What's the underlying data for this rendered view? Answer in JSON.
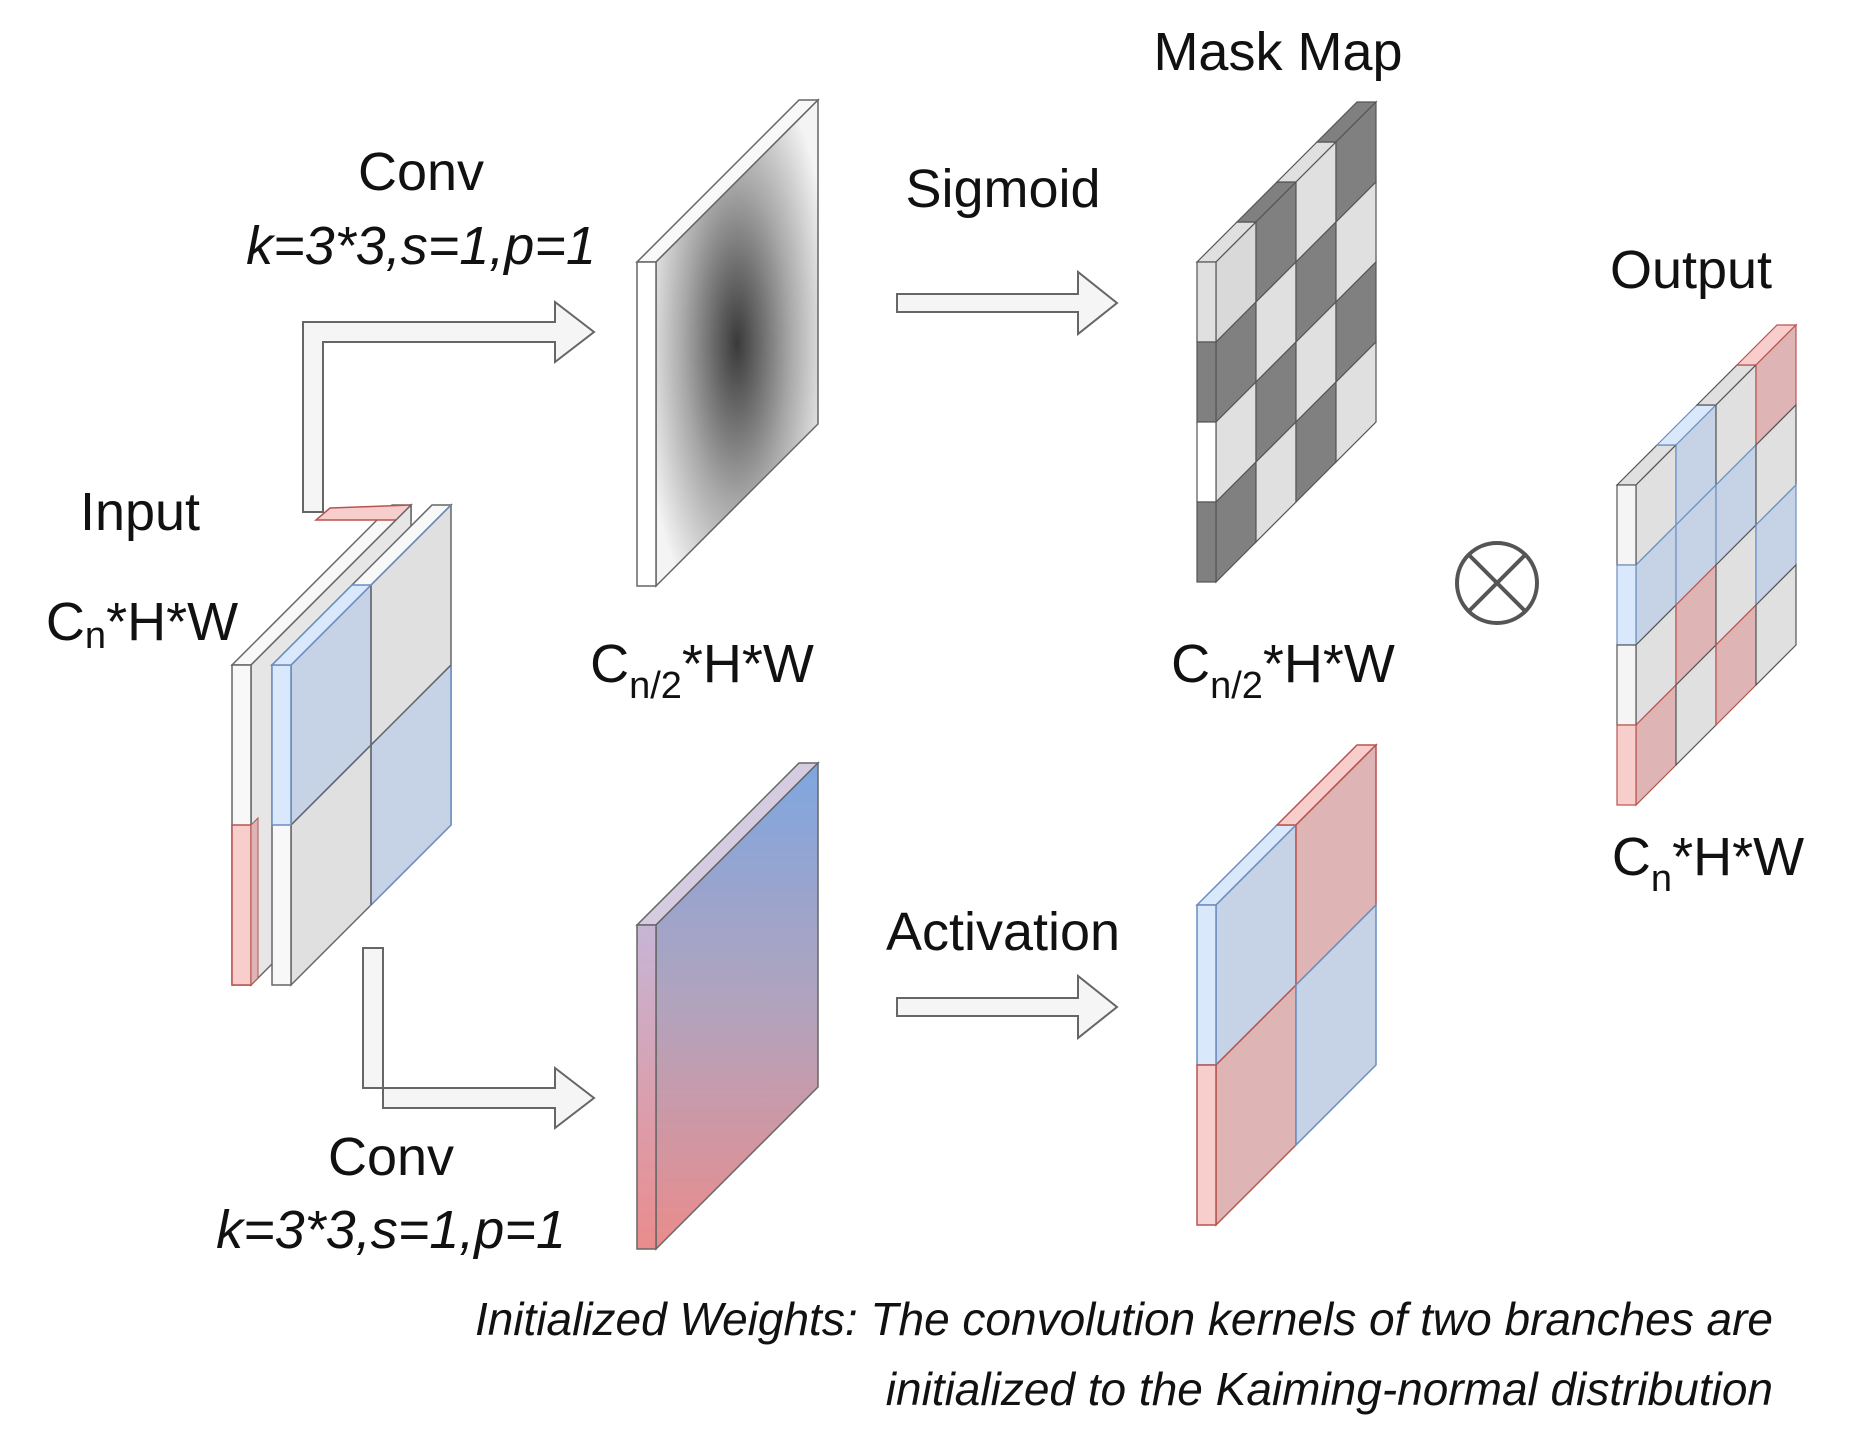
{
  "labels": {
    "conv_top": "Conv",
    "conv_top_params": "k=3*3,s=1,p=1",
    "conv_bottom": "Conv",
    "conv_bottom_params": "k=3*3,s=1,p=1",
    "sigmoid": "Sigmoid",
    "activation": "Activation",
    "mask_map": "Mask Map",
    "output": "Output",
    "input": "Input",
    "input_dims": {
      "base": "C",
      "sub": "n",
      "rest": "*H*W"
    },
    "half_dims_left": {
      "base": "C",
      "sub": "n/2",
      "rest": "*H*W"
    },
    "half_dims_right": {
      "base": "C",
      "sub": "n/2",
      "rest": "*H*W"
    },
    "output_dims": {
      "base": "C",
      "sub": "n",
      "rest": "*H*W"
    },
    "caption_line1": "Initialized Weights: The convolution kernels of two branches are",
    "caption_line2": "initialized to the Kaiming-normal distribution"
  },
  "operators": {
    "multiply": "otimes-icon"
  },
  "colors": {
    "gray_light": "#e0e0e0",
    "gray_dark": "#808080",
    "blue_cell": "#c6d2e6",
    "red_cell": "#dfb4b4",
    "blue_front": "#dae8fc",
    "red_front": "#f8cecc",
    "arrow_fill": "#f5f5f5",
    "arrow_stroke": "#666666",
    "gradient_blue": "#7ea6e0",
    "gradient_red": "#ea8c8c"
  }
}
